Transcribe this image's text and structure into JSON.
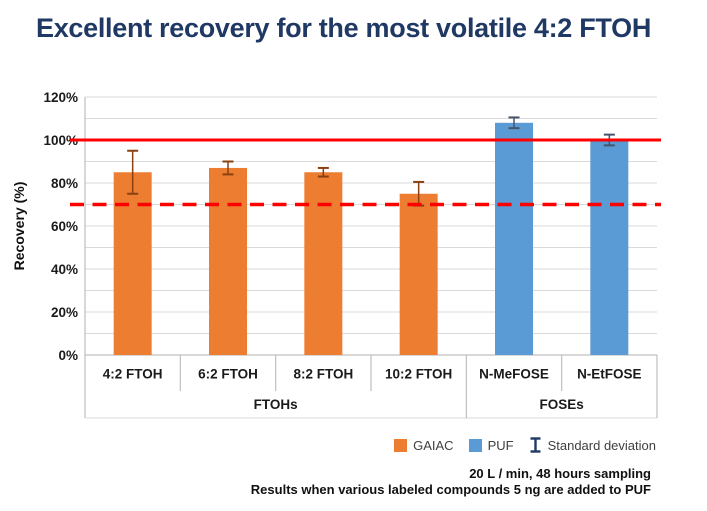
{
  "title": {
    "text": "Excellent recovery for the most volatile 4:2 FTOH",
    "color": "#1F3864"
  },
  "chart_data": {
    "type": "bar",
    "title": "",
    "xlabel": "",
    "ylabel": "Recovery (%)",
    "ylim": [
      0,
      120
    ],
    "ytick_step": 20,
    "minor_grid_step": 10,
    "ytick_labels": [
      "0%",
      "20%",
      "40%",
      "60%",
      "80%",
      "100%",
      "120%"
    ],
    "grid": true,
    "categories": [
      "4:2 FTOH",
      "6:2 FTOH",
      "8:2 FTOH",
      "10:2 FTOH",
      "N-MeFOSE",
      "N-EtFOSE"
    ],
    "category_groups": [
      {
        "label": "FTOHs",
        "start": 0,
        "end": 3
      },
      {
        "label": "FOSEs",
        "start": 4,
        "end": 5
      }
    ],
    "series": [
      {
        "name": "GAIAC",
        "color": "#ED7D31",
        "error_color": "#8A4010",
        "values": [
          85,
          87,
          85,
          75,
          null,
          null
        ],
        "errors": [
          10,
          3,
          2,
          5.5,
          null,
          null
        ]
      },
      {
        "name": "PUF",
        "color": "#5B9BD5",
        "error_color": "#44546A",
        "values": [
          null,
          null,
          null,
          null,
          108,
          100
        ],
        "errors": [
          null,
          null,
          null,
          null,
          2.5,
          2.5
        ]
      }
    ],
    "reference_lines": [
      {
        "value": 100,
        "style": "solid",
        "color": "#FE0000"
      },
      {
        "value": 70,
        "style": "dashed",
        "color": "#FE0000"
      }
    ],
    "legend_position": "bottom-right",
    "legend": [
      {
        "label": "GAIAC",
        "swatch": "square",
        "color": "#ED7D31"
      },
      {
        "label": "PUF",
        "swatch": "square",
        "color": "#5B9BD5"
      },
      {
        "label": "Standard deviation",
        "swatch": "error-bar",
        "color": "#1F3864"
      }
    ]
  },
  "captions": {
    "line1": "20 L / min, 48 hours sampling",
    "line2": "Results when various labeled compounds 5 ng are added to PUF"
  }
}
